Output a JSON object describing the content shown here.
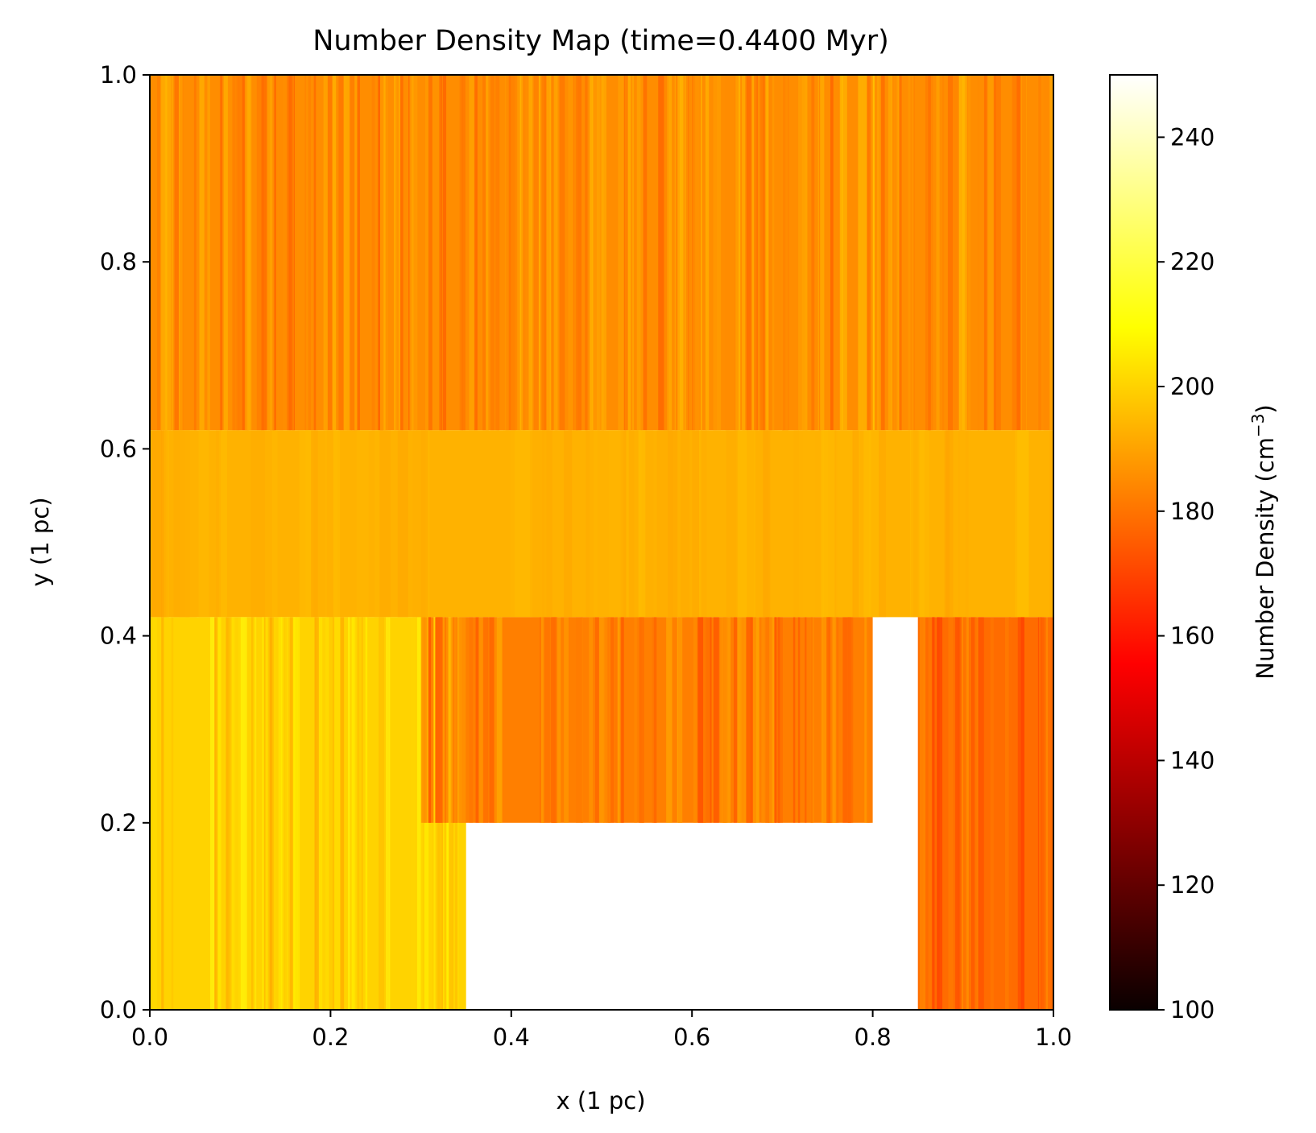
{
  "chart_data": {
    "type": "heatmap",
    "title": "Number Density Map (time=0.4400 Myr)",
    "xlabel": "x (1 pc)",
    "ylabel": "y (1 pc)",
    "xlim": [
      0.0,
      1.0
    ],
    "ylim": [
      0.0,
      1.0
    ],
    "x_ticks": [
      "0.0",
      "0.2",
      "0.4",
      "0.6",
      "0.8",
      "1.0"
    ],
    "y_ticks": [
      "0.0",
      "0.2",
      "0.4",
      "0.6",
      "0.8",
      "1.0"
    ],
    "grid": false,
    "colormap": "hot",
    "colorbar": {
      "label": "Number Density (cm",
      "label_exponent": "−3",
      "label_close": ")",
      "range": [
        100,
        250
      ],
      "ticks": [
        "100",
        "120",
        "140",
        "160",
        "180",
        "200",
        "220",
        "240"
      ]
    },
    "regions": [
      {
        "y_range": [
          0.62,
          1.0
        ],
        "x_range": [
          0.0,
          1.0
        ],
        "typical_density": 185,
        "pattern": "vertical streaks"
      },
      {
        "y_range": [
          0.42,
          0.62
        ],
        "x_range": [
          0.0,
          1.0
        ],
        "typical_density": 193,
        "pattern": "smooth band"
      },
      {
        "y_range": [
          0.0,
          0.42
        ],
        "x_range": [
          0.0,
          0.35
        ],
        "typical_density": 200,
        "pattern": "vertical streaks, bright near x=0"
      },
      {
        "y_range": [
          0.2,
          0.42
        ],
        "x_range": [
          0.3,
          0.8
        ],
        "typical_density": 182,
        "pattern": "rippled vertical filaments"
      },
      {
        "y_range": [
          0.0,
          0.42
        ],
        "x_range": [
          0.85,
          1.0
        ],
        "typical_density": 178,
        "pattern": "darker streaks"
      }
    ]
  }
}
